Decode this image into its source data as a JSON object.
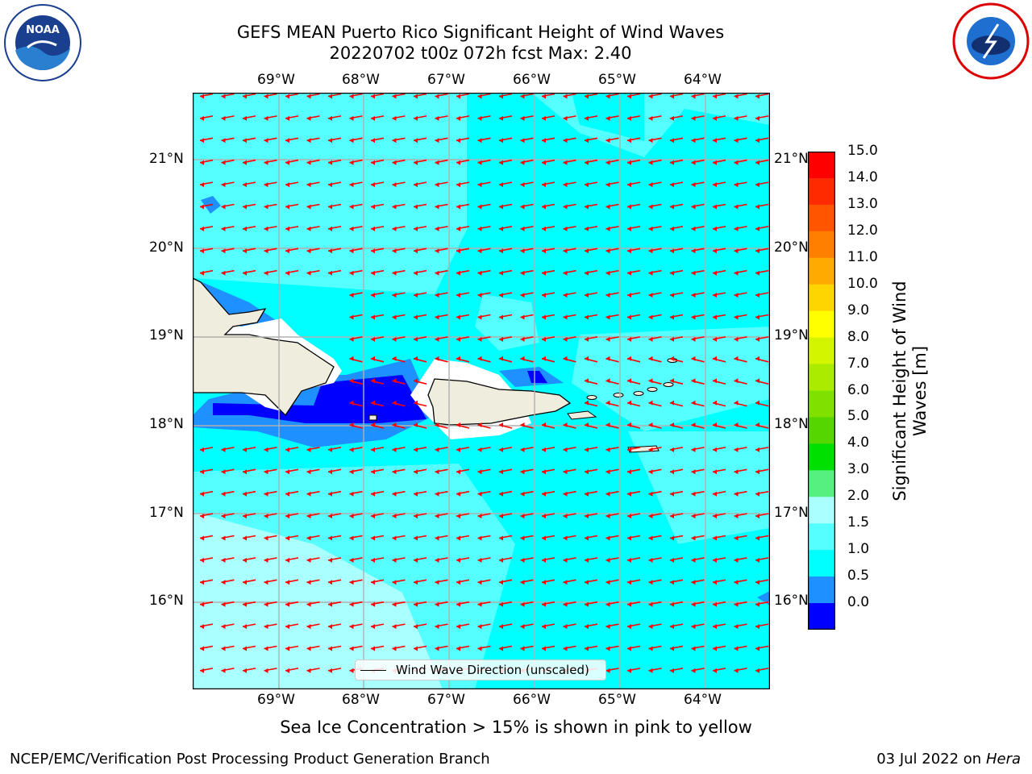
{
  "title": {
    "line1": "GEFS MEAN Puerto Rico Significant Height of Wind Waves",
    "line2": "20220702 t00z 072h fcst   Max: 2.40"
  },
  "logos": {
    "left": "NOAA",
    "right": "NATIONAL WEATHER SERVICE"
  },
  "map": {
    "lon_labels": [
      "69°W",
      "68°W",
      "67°W",
      "66°W",
      "65°W",
      "64°W"
    ],
    "lat_labels": [
      "21°N",
      "20°N",
      "19°N",
      "18°N",
      "17°N",
      "16°N"
    ],
    "colors": {
      "ocean": "#00ffff",
      "ocean_light": "#55ffff",
      "ocean_pale": "#aaffff",
      "band_mid": "#1e90ff",
      "band_dark": "#0000ff",
      "land": "#eeedde",
      "grid": "#b0b0b0",
      "arrow": "#ff0000"
    }
  },
  "legend": {
    "label": "Wind Wave Direction (unscaled)"
  },
  "colorbar": {
    "label": "Significant Height of Wind Waves [m]",
    "ticks": [
      "15.0",
      "14.0",
      "13.0",
      "12.0",
      "11.0",
      "10.0",
      "9.0",
      "8.0",
      "7.0",
      "6.0",
      "5.0",
      "4.0",
      "3.0",
      "2.0",
      "1.5",
      "1.0",
      "0.5",
      "0.0"
    ],
    "colors": [
      "#ff0000",
      "#ff2a00",
      "#ff5500",
      "#ff8000",
      "#ffaa00",
      "#ffd500",
      "#ffff00",
      "#d4f500",
      "#aaeb00",
      "#80e000",
      "#55d600",
      "#00e000",
      "#55f080",
      "#aaffff",
      "#55ffff",
      "#00ffff",
      "#1e90ff",
      "#0000ff"
    ]
  },
  "subtitle": "Sea Ice Concentration > 15% is shown in pink to yellow",
  "footer": {
    "left": "NCEP/EMC/Verification Post Processing Product Generation Branch",
    "right_prefix": "03 Jul 2022 on ",
    "right_host": "Hera"
  }
}
